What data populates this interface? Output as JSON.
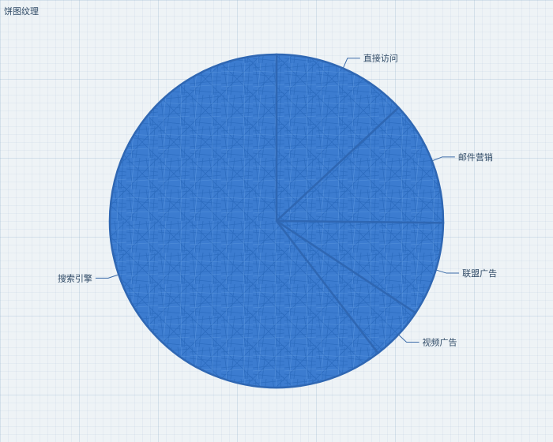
{
  "chart_data": {
    "type": "pie",
    "title": "饼图纹理",
    "categories": [
      "直接访问",
      "邮件营销",
      "联盟广告",
      "视频广告",
      "搜索引擎"
    ],
    "values": [
      335,
      310,
      234,
      135,
      1548
    ],
    "colors": {
      "fill": "#3f7fce",
      "stroke": "#2f67b3",
      "label": "#2f4a66",
      "leader": "#3a6aa8"
    }
  }
}
